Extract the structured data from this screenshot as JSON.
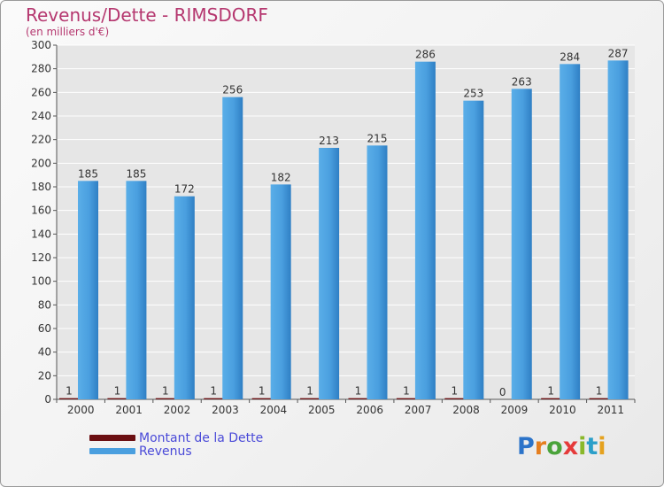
{
  "header": {
    "title": "Revenus/Dette - RIMSDORF",
    "subtitle": "(en milliers d'€)"
  },
  "chart_data": {
    "type": "bar",
    "title": "Revenus/Dette - RIMSDORF",
    "ylabel": "(en milliers d'€)",
    "xlabel": "",
    "ylim": [
      0,
      300
    ],
    "ytick_step": 20,
    "categories": [
      "2000",
      "2001",
      "2002",
      "2003",
      "2004",
      "2005",
      "2006",
      "2007",
      "2008",
      "2009",
      "2010",
      "2011"
    ],
    "series": [
      {
        "name": "Montant de la Dette",
        "color": "#6b0f12",
        "values": [
          1,
          1,
          1,
          1,
          1,
          1,
          1,
          1,
          1,
          0,
          1,
          1
        ]
      },
      {
        "name": "Revenus",
        "color": "#4a9fdf",
        "values": [
          185,
          185,
          172,
          256,
          182,
          213,
          215,
          286,
          253,
          263,
          284,
          287
        ]
      }
    ],
    "legend_position": "bottom-left"
  },
  "legend": {
    "debt_label": "Montant de la Dette",
    "revenue_label": "Revenus",
    "debt_color": "#6b0f12",
    "revenue_color": "#4a9fdf"
  },
  "logo": {
    "letters": [
      "P",
      "r",
      "o",
      "x",
      "i",
      "t",
      "i"
    ],
    "colors": [
      "#2b73c9",
      "#e57f1f",
      "#4aa33a",
      "#e53a3a",
      "#8ab82a",
      "#2b9fc9",
      "#e5a21f"
    ]
  }
}
